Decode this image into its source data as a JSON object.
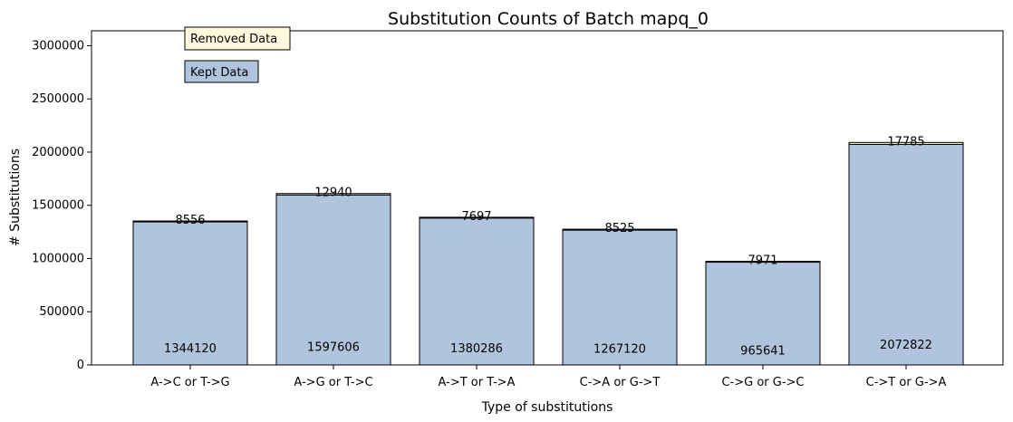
{
  "chart_data": {
    "type": "bar",
    "title": "Substitution Counts of Batch mapq_0",
    "xlabel": "Type of substitutions",
    "ylabel": "# Substitutions",
    "ylim": [
      0,
      3140000
    ],
    "yticks": [
      0,
      500000,
      1000000,
      1500000,
      2000000,
      2500000,
      3000000
    ],
    "ytick_labels": [
      "0",
      "500000",
      "1000000",
      "1500000",
      "2000000",
      "2500000",
      "3000000"
    ],
    "categories": [
      "A->C or T->G",
      "A->G or T->C",
      "A->T or T->A",
      "C->A or G->T",
      "C->G or G->C",
      "C->T or G->A"
    ],
    "stacked": true,
    "series": [
      {
        "name": "Kept Data",
        "color": "#b0c4de",
        "values": [
          1344120,
          1597606,
          1380286,
          1267120,
          965641,
          2072822
        ]
      },
      {
        "name": "Removed Data",
        "color": "#fff8dc",
        "values": [
          8556,
          12940,
          7697,
          8525,
          7971,
          17785
        ]
      }
    ],
    "kept_labels": [
      "1344120",
      "1597606",
      "1380286",
      "1267120",
      "965641",
      "2072822"
    ],
    "removed_labels": [
      "8556",
      "12940",
      "7697",
      "8525",
      "7971",
      "17785"
    ],
    "legend": [
      "Removed Data",
      "Kept Data"
    ],
    "legend_placement": "top-left",
    "grid": false
  }
}
